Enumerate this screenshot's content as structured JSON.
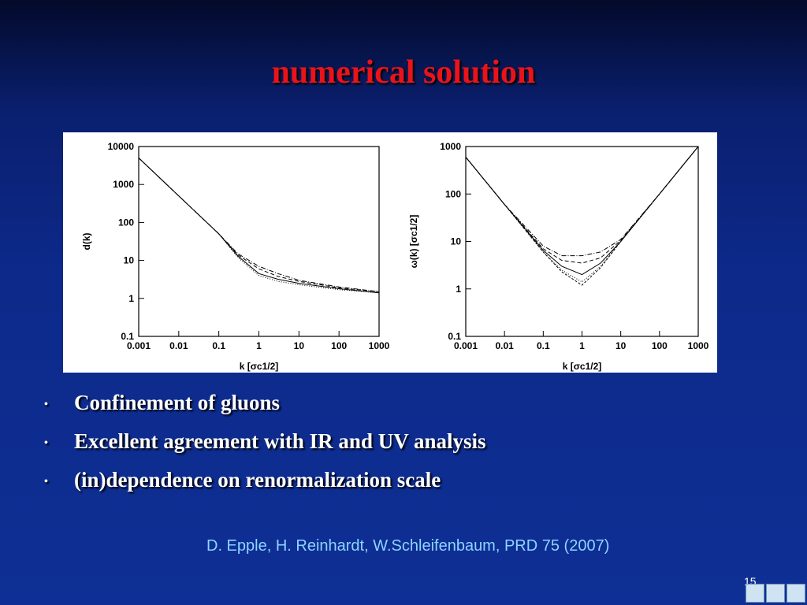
{
  "slide": {
    "title": "numerical solution",
    "bullets": [
      "Confinement of gluons",
      "Excellent agreement with IR and UV analysis",
      "(in)dependence on renormalization scale"
    ],
    "citation": "D. Epple, H. Reinhardt, W.Schleifenbaum, PRD 75 (2007)",
    "page_number": 15
  },
  "chart_data": [
    {
      "type": "line",
      "x_label": "k [σc1/2]",
      "y_label": "d(k)",
      "log_x": true,
      "log_y": true,
      "x": [
        0.001,
        0.01,
        0.1,
        0.3,
        1,
        3,
        10,
        100,
        1000
      ],
      "series": [
        {
          "color": "#000000",
          "dash": "6 2 1 2",
          "values": [
            5000,
            500,
            50,
            15,
            7,
            4.5,
            3,
            2,
            1.5
          ]
        },
        {
          "color": "#000000",
          "dash": "5 3",
          "values": [
            5000,
            500,
            50,
            14,
            6,
            3.8,
            2.8,
            1.9,
            1.5
          ]
        },
        {
          "color": "#000000",
          "dash": "none",
          "values": [
            5000,
            500,
            50,
            13,
            4.5,
            3.2,
            2.5,
            1.8,
            1.4
          ]
        },
        {
          "color": "#000000",
          "dash": "1 2",
          "values": [
            5000,
            500,
            50,
            12,
            4,
            2.8,
            2.3,
            1.7,
            1.4
          ]
        }
      ],
      "xlim": [
        0.001,
        1000
      ],
      "xticks": [
        0.001,
        0.01,
        0.1,
        1,
        10,
        100,
        1000
      ],
      "ylim": [
        0.1,
        10000
      ],
      "yticks": [
        0.1,
        1,
        10,
        100,
        1000,
        10000
      ]
    },
    {
      "type": "line",
      "x_label": "k [σc1/2]",
      "y_label": "ω(k) [σc1/2]",
      "log_x": true,
      "log_y": true,
      "x": [
        0.001,
        0.01,
        0.1,
        0.3,
        1,
        3,
        10,
        100,
        1000
      ],
      "series": [
        {
          "color": "#000000",
          "dash": "6 2 1 2",
          "values": [
            600,
            60,
            8,
            5,
            5,
            6,
            11,
            100,
            1000
          ]
        },
        {
          "color": "#000000",
          "dash": "5 3",
          "values": [
            600,
            60,
            7,
            4,
            3.5,
            4.5,
            10.5,
            100,
            1000
          ]
        },
        {
          "color": "#000000",
          "dash": "none",
          "values": [
            600,
            60,
            6.5,
            3,
            2,
            3.5,
            10,
            100,
            1000
          ]
        },
        {
          "color": "#000000",
          "dash": "1 2",
          "values": [
            600,
            60,
            6,
            2.5,
            1.4,
            3,
            10,
            100,
            1000
          ]
        },
        {
          "color": "#000000",
          "dash": "3 2",
          "values": [
            600,
            60,
            6,
            2.3,
            1.2,
            2.8,
            10,
            100,
            1000
          ]
        }
      ],
      "xlim": [
        0.001,
        1000
      ],
      "xticks": [
        0.001,
        0.01,
        0.1,
        1,
        10,
        100,
        1000
      ],
      "ylim": [
        0.1,
        1000
      ],
      "yticks": [
        0.1,
        1,
        10,
        100,
        1000
      ]
    }
  ]
}
